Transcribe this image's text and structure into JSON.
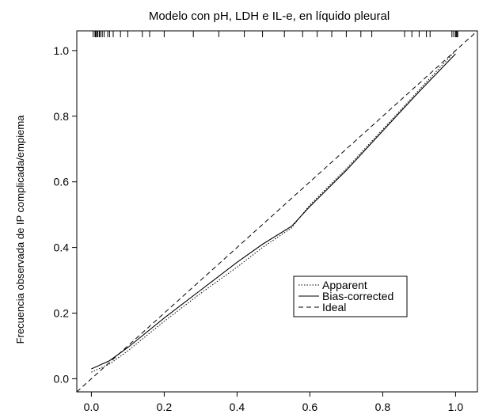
{
  "chart_data": {
    "type": "line",
    "title": "Modelo con pH, LDH e IL-e, en líquido pleural",
    "xlabel": "",
    "ylabel": "Frecuencia observada de IP complicada/empiema",
    "xlim": [
      -0.04,
      1.06
    ],
    "ylim": [
      -0.04,
      1.06
    ],
    "x_ticks": [
      "0.0",
      "0.2",
      "0.4",
      "0.6",
      "0.8",
      "1.0"
    ],
    "y_ticks": [
      "0.0",
      "0.2",
      "0.4",
      "0.6",
      "0.8",
      "1.0"
    ],
    "grid": false,
    "legend_position": "center-right",
    "series": [
      {
        "name": "Apparent",
        "style": "dotted",
        "x": [
          0.0,
          0.05,
          0.1,
          0.2,
          0.3,
          0.4,
          0.47,
          0.55,
          0.6,
          0.7,
          0.8,
          0.9,
          1.0
        ],
        "y": [
          0.02,
          0.045,
          0.085,
          0.175,
          0.26,
          0.34,
          0.4,
          0.46,
          0.53,
          0.64,
          0.76,
          0.88,
          1.0
        ]
      },
      {
        "name": "Bias-corrected",
        "style": "solid",
        "x": [
          0.0,
          0.05,
          0.1,
          0.2,
          0.3,
          0.4,
          0.47,
          0.55,
          0.6,
          0.7,
          0.8,
          0.9,
          1.0
        ],
        "y": [
          0.03,
          0.055,
          0.095,
          0.185,
          0.27,
          0.355,
          0.41,
          0.465,
          0.525,
          0.635,
          0.755,
          0.875,
          0.99
        ]
      },
      {
        "name": "Ideal",
        "style": "dashed",
        "x": [
          -0.04,
          1.06
        ],
        "y": [
          -0.04,
          1.06
        ]
      }
    ],
    "rug": [
      0.005,
      0.01,
      0.012,
      0.015,
      0.018,
      0.022,
      0.025,
      0.03,
      0.035,
      0.045,
      0.05,
      0.06,
      0.08,
      0.1,
      0.14,
      0.16,
      0.2,
      0.28,
      0.35,
      0.42,
      0.47,
      0.53,
      0.58,
      0.62,
      0.66,
      0.7,
      0.74,
      0.77,
      0.86,
      0.88,
      0.9,
      0.92,
      0.93,
      0.99,
      0.995,
      1.0,
      1.002,
      1.004,
      1.006
    ]
  }
}
